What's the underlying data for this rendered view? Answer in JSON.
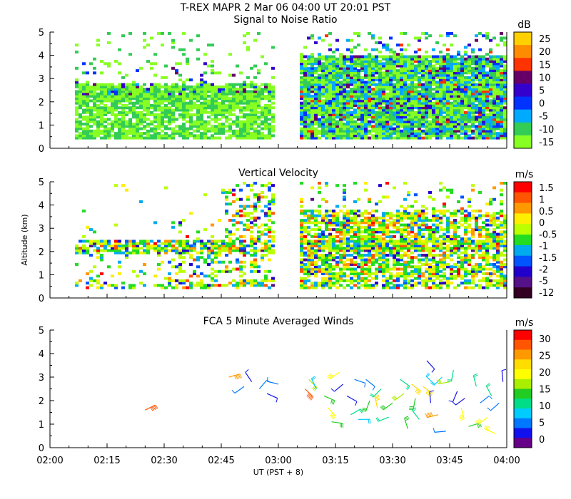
{
  "figure": {
    "title": "T-REX   MAPR   2 Mar 06   04:00 UT   20:01   PST",
    "xlabel": "UT  (PST + 8)",
    "ylabel": "Altitude (km)",
    "time_ticks": [
      "02:00",
      "02:15",
      "02:30",
      "02:45",
      "03:00",
      "03:15",
      "03:30",
      "03:45",
      "04:00"
    ]
  },
  "chart_data": [
    {
      "type": "heatmap",
      "title": "Signal to Noise Ratio",
      "ylabel": "Altitude (km)",
      "xlim": [
        "02:00",
        "04:00"
      ],
      "ylim": [
        0,
        5
      ],
      "yticks": [
        0,
        1,
        2,
        3,
        4,
        5
      ],
      "data_gaps": [
        [
          "02:00",
          "02:07"
        ],
        [
          "02:59",
          "03:06"
        ]
      ],
      "colorbar": {
        "unit": "dB",
        "tick_labels": [
          "25",
          "20",
          "15",
          "10",
          "5",
          "0",
          "-5",
          "-10",
          "-15"
        ],
        "colors": [
          "#ffd000",
          "#ff8c00",
          "#ff3300",
          "#660066",
          "#3300cc",
          "#0033ff",
          "#00aaff",
          "#33cc55",
          "#88ff22"
        ]
      }
    },
    {
      "type": "heatmap",
      "title": "Vertical Velocity",
      "ylabel": "Altitude (km)",
      "xlim": [
        "02:00",
        "04:00"
      ],
      "ylim": [
        0,
        5
      ],
      "yticks": [
        0,
        1,
        2,
        3,
        4,
        5
      ],
      "data_gaps": [
        [
          "02:00",
          "02:07"
        ],
        [
          "02:59",
          "03:06"
        ]
      ],
      "colorbar": {
        "unit": "m/s",
        "tick_labels": [
          "1.5",
          "1",
          "0.5",
          "0",
          "-0.5",
          "-1",
          "-1.5",
          "-2",
          "-5",
          "-12"
        ],
        "colors": [
          "#ff0000",
          "#ff5500",
          "#ff9900",
          "#ffee00",
          "#bbff00",
          "#22dd22",
          "#00aaee",
          "#0055ff",
          "#2200cc",
          "#551188",
          "#330022"
        ]
      }
    },
    {
      "type": "scatter",
      "title": "FCA 5 Minute Averaged Winds",
      "ylabel": "Altitude (km)",
      "xlim": [
        "02:00",
        "04:00"
      ],
      "ylim": [
        0,
        5
      ],
      "yticks": [
        0,
        1,
        2,
        3,
        4,
        5
      ],
      "colorbar": {
        "unit": "m/s",
        "tick_labels": [
          "30",
          "25",
          "20",
          "15",
          "10",
          "5",
          "0"
        ],
        "colors": [
          "#ff0000",
          "#ff5500",
          "#ff9900",
          "#ffdd00",
          "#ffff00",
          "#aaee00",
          "#22cc22",
          "#00dd88",
          "#00ccff",
          "#0077ff",
          "#1111ee",
          "#660088"
        ]
      },
      "wind_barbs": [
        {
          "time": "02:25",
          "alt": 1.6,
          "speed": 27
        },
        {
          "time": "02:47",
          "alt": 3.0,
          "speed": 24
        },
        {
          "time": "02:51",
          "alt": 2.6,
          "speed": 5
        },
        {
          "time": "02:53",
          "alt": 2.8,
          "speed": 3
        },
        {
          "time": "02:55",
          "alt": 2.5,
          "speed": 6
        },
        {
          "time": "02:57",
          "alt": 2.3,
          "speed": 4
        },
        {
          "time": "03:00",
          "alt": 2.7,
          "speed": 5
        },
        {
          "time": "03:07",
          "alt": 2.5,
          "speed": 27
        },
        {
          "time": "03:08",
          "alt": 2.9,
          "speed": 17
        },
        {
          "time": "03:10",
          "alt": 2.5,
          "speed": 9
        },
        {
          "time": "03:12",
          "alt": 2.2,
          "speed": 15
        },
        {
          "time": "03:13",
          "alt": 1.7,
          "speed": 19
        },
        {
          "time": "03:14",
          "alt": 1.1,
          "speed": 14
        },
        {
          "time": "03:16",
          "alt": 3.2,
          "speed": 18
        },
        {
          "time": "03:17",
          "alt": 2.7,
          "speed": 4
        },
        {
          "time": "03:18",
          "alt": 2.2,
          "speed": 2
        },
        {
          "time": "03:19",
          "alt": 1.4,
          "speed": 10
        },
        {
          "time": "03:20",
          "alt": 2.9,
          "speed": 6
        },
        {
          "time": "03:21",
          "alt": 1.2,
          "speed": 8
        },
        {
          "time": "03:23",
          "alt": 2.9,
          "speed": 5
        },
        {
          "time": "03:24",
          "alt": 2.0,
          "speed": 14
        },
        {
          "time": "03:26",
          "alt": 1.7,
          "speed": 21
        },
        {
          "time": "03:27",
          "alt": 2.5,
          "speed": 12
        },
        {
          "time": "03:29",
          "alt": 1.3,
          "speed": 10
        },
        {
          "time": "03:30",
          "alt": 1.9,
          "speed": 13
        },
        {
          "time": "03:32",
          "alt": 2.9,
          "speed": 11
        },
        {
          "time": "03:33",
          "alt": 2.3,
          "speed": 16
        },
        {
          "time": "03:34",
          "alt": 0.8,
          "speed": 14
        },
        {
          "time": "03:35",
          "alt": 2.7,
          "speed": 21
        },
        {
          "time": "03:36",
          "alt": 2.1,
          "speed": 13
        },
        {
          "time": "03:37",
          "alt": 1.2,
          "speed": 12
        },
        {
          "time": "03:38",
          "alt": 2.6,
          "speed": 23
        },
        {
          "time": "03:39",
          "alt": 3.7,
          "speed": 4
        },
        {
          "time": "03:40",
          "alt": 1.9,
          "speed": 3
        },
        {
          "time": "03:41",
          "alt": 2.7,
          "speed": 9
        },
        {
          "time": "03:42",
          "alt": 1.4,
          "speed": 25
        },
        {
          "time": "03:43",
          "alt": 3.0,
          "speed": 8
        },
        {
          "time": "03:44",
          "alt": 0.7,
          "speed": 5
        },
        {
          "time": "03:45",
          "alt": 2.8,
          "speed": 16
        },
        {
          "time": "03:46",
          "alt": 3.3,
          "speed": 12
        },
        {
          "time": "03:47",
          "alt": 2.4,
          "speed": 2
        },
        {
          "time": "03:48",
          "alt": 1.7,
          "speed": 20
        },
        {
          "time": "03:49",
          "alt": 2.1,
          "speed": 4
        },
        {
          "time": "03:50",
          "alt": 0.9,
          "speed": 14
        },
        {
          "time": "03:52",
          "alt": 2.6,
          "speed": 10
        },
        {
          "time": "03:53",
          "alt": 1.9,
          "speed": 5
        },
        {
          "time": "03:55",
          "alt": 1.3,
          "speed": 20
        },
        {
          "time": "03:56",
          "alt": 2.2,
          "speed": 12
        },
        {
          "time": "03:57",
          "alt": 0.6,
          "speed": 18
        },
        {
          "time": "03:58",
          "alt": 1.9,
          "speed": 6
        },
        {
          "time": "03:59",
          "alt": 2.8,
          "speed": 3
        }
      ]
    }
  ]
}
